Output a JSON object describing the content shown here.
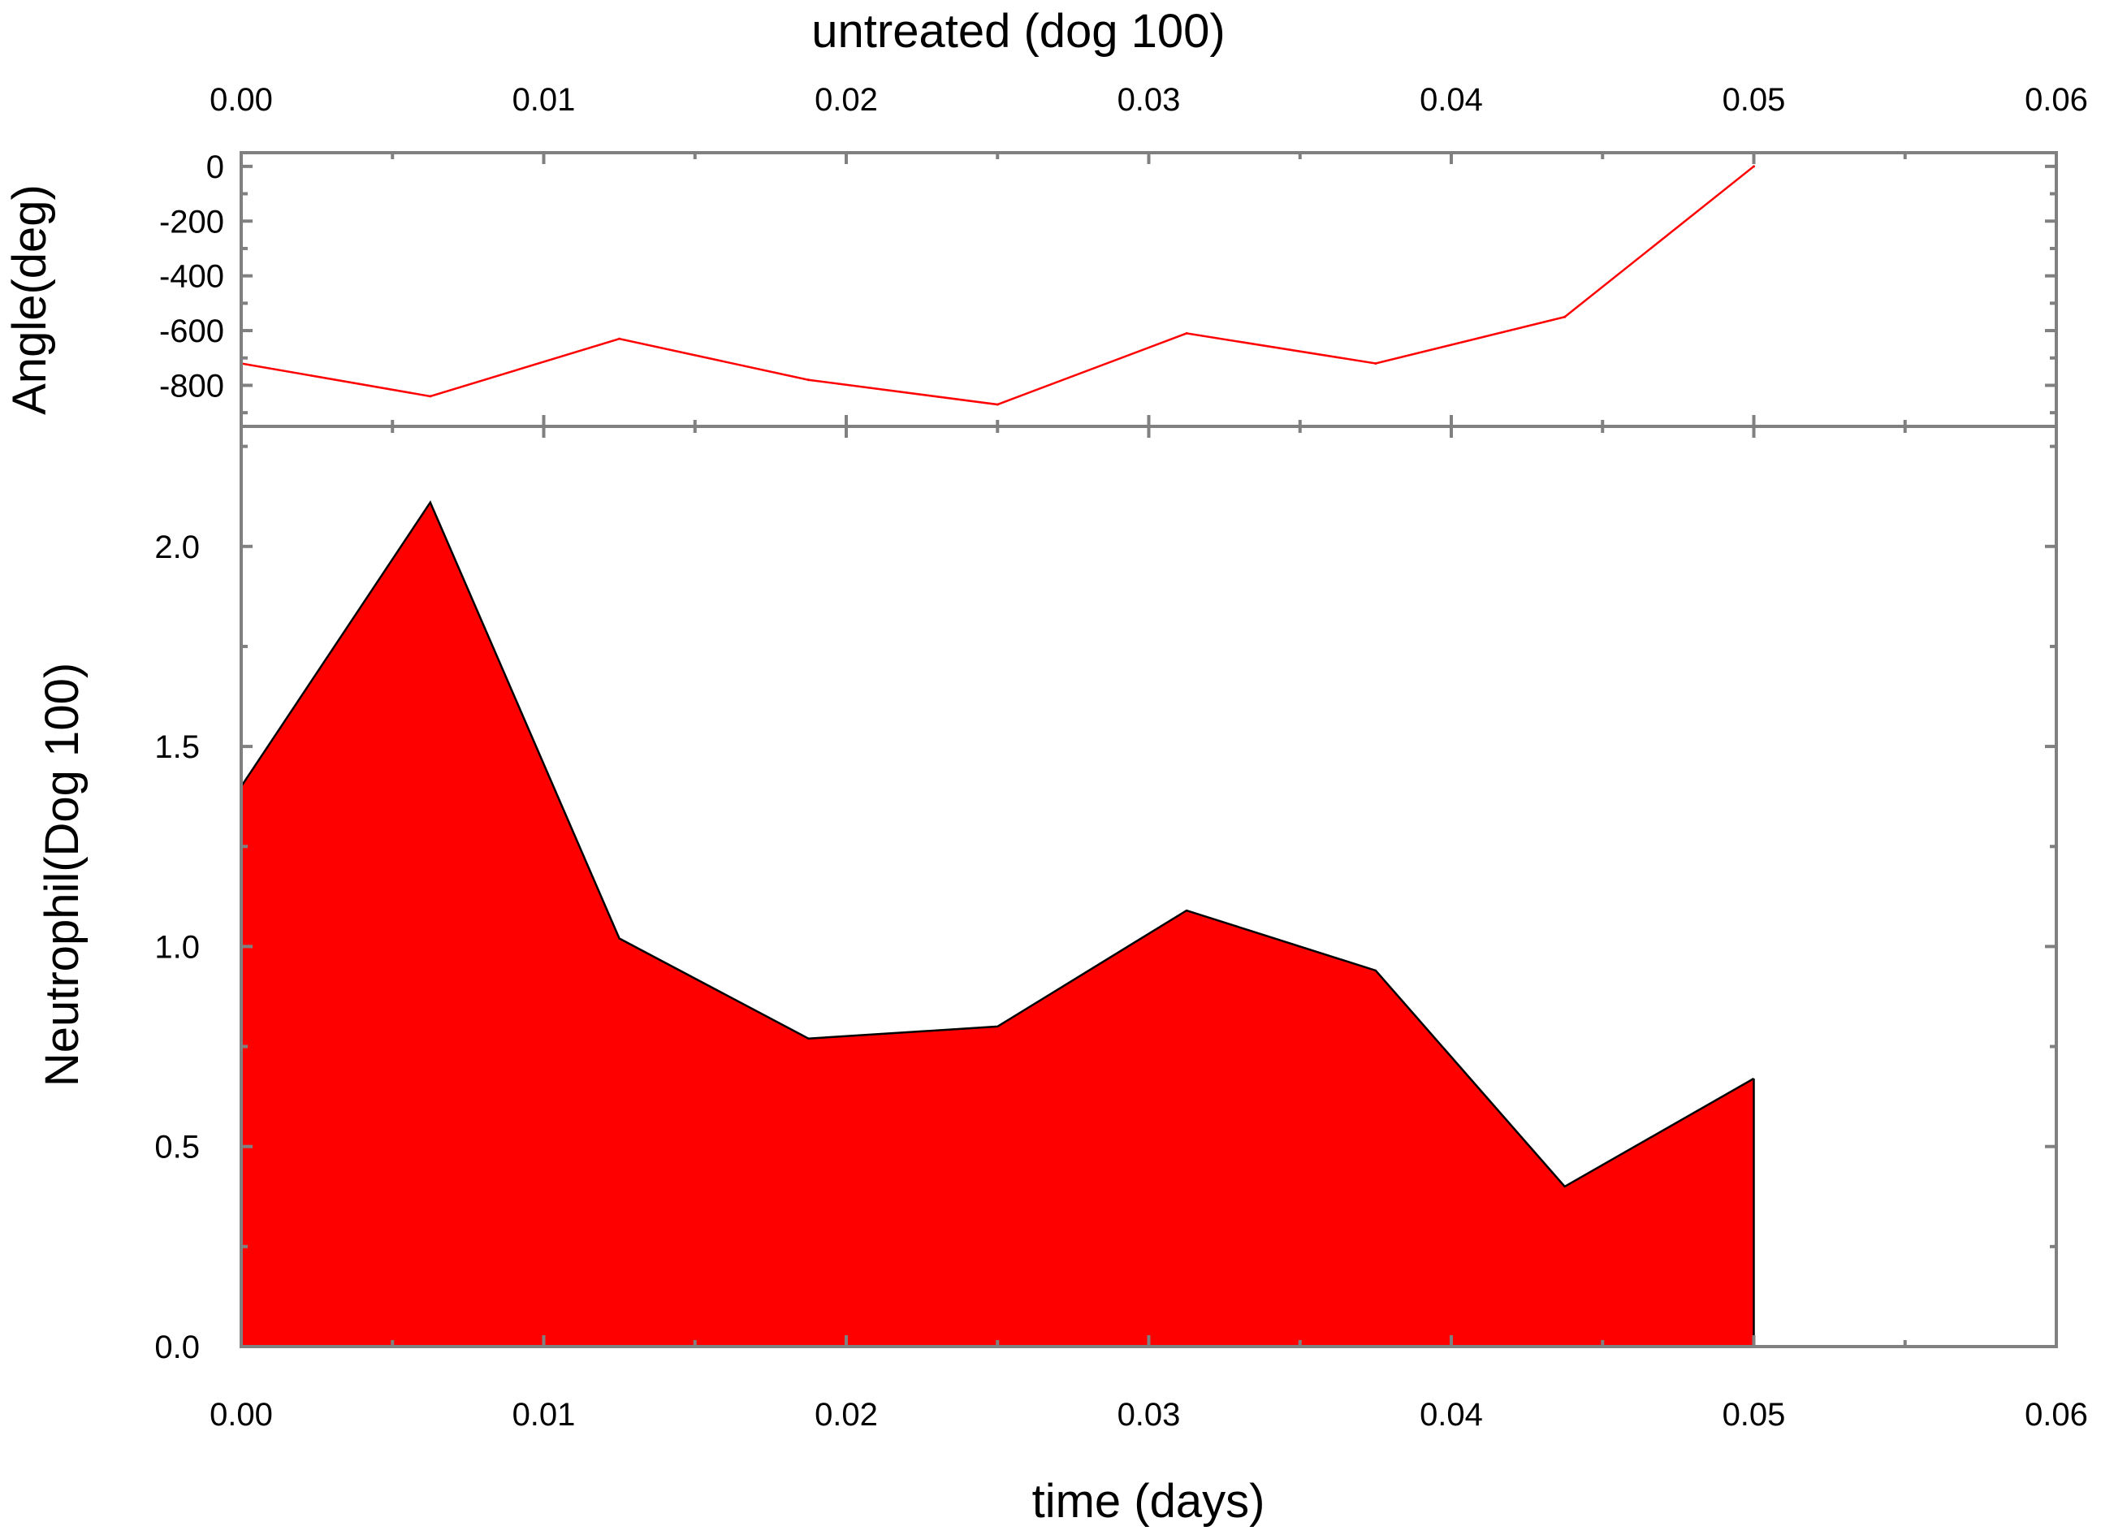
{
  "chart_data": [
    {
      "type": "line",
      "panel": "top",
      "title": "untreated (dog 100)",
      "ylabel": "Angle(deg)",
      "xlabel": "",
      "xlim": [
        0.0,
        0.06
      ],
      "ylim": [
        -950,
        50
      ],
      "x_ticks": [
        "0.00",
        "0.01",
        "0.02",
        "0.03",
        "0.04",
        "0.05",
        "0.06"
      ],
      "y_ticks": [
        "0",
        "-200",
        "-400",
        "-600",
        "-800"
      ],
      "grid": false,
      "series": [
        {
          "color": "#ff0000",
          "x": [
            0.0,
            0.00625,
            0.0125,
            0.01875,
            0.025,
            0.03125,
            0.0375,
            0.04375,
            0.05
          ],
          "y": [
            -720,
            -840,
            -630,
            -780,
            -870,
            -610,
            -720,
            -550,
            0
          ]
        }
      ]
    },
    {
      "type": "area",
      "panel": "bottom",
      "title": "",
      "ylabel": "Neutrophil(Dog 100)",
      "xlabel": "time (days)",
      "xlim": [
        0.0,
        0.06
      ],
      "ylim": [
        0.0,
        2.3
      ],
      "x_ticks": [
        "0.00",
        "0.01",
        "0.02",
        "0.03",
        "0.04",
        "0.05",
        "0.06"
      ],
      "y_ticks": [
        "0.0",
        "0.5",
        "1.0",
        "1.5",
        "2.0"
      ],
      "grid": false,
      "series": [
        {
          "color": "#ff0000",
          "x": [
            0.0,
            0.00625,
            0.0125,
            0.01875,
            0.025,
            0.03125,
            0.0375,
            0.04375,
            0.05
          ],
          "y": [
            1.4,
            2.11,
            1.02,
            0.77,
            0.8,
            1.09,
            0.94,
            0.4,
            0.67
          ]
        }
      ]
    }
  ]
}
